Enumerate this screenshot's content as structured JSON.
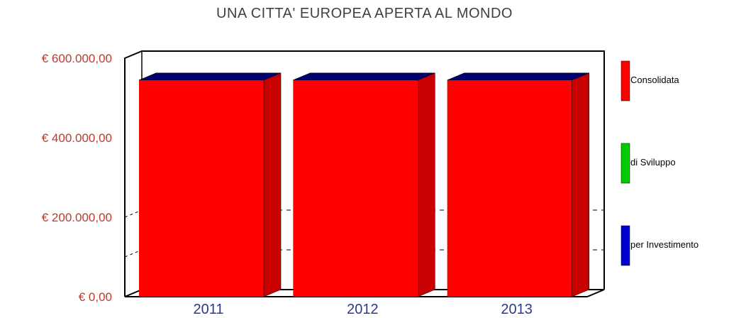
{
  "chart_data": {
    "type": "bar",
    "title": "UNA CITTA' EUROPEA APERTA AL MONDO",
    "categories": [
      "2011",
      "2012",
      "2013"
    ],
    "series": [
      {
        "name": "Consolidata",
        "color": "#ff0000",
        "values": [
          545000,
          545000,
          545000
        ]
      },
      {
        "name": "di Sviluppo",
        "color": "#00cc00",
        "values": [
          0,
          0,
          0
        ]
      },
      {
        "name": "per Investimento",
        "color": "#0000cc",
        "values": [
          0,
          0,
          0
        ]
      }
    ],
    "stacked": true,
    "ylim": [
      0,
      600000
    ],
    "yticks": [
      {
        "value": 0,
        "label": "€ 0,00"
      },
      {
        "value": 200000,
        "label": "€ 200.000,00"
      },
      {
        "value": 400000,
        "label": "€ 400.000,00"
      },
      {
        "value": 600000,
        "label": "€ 600.000,00"
      }
    ],
    "legend_position": "right",
    "grid": true
  }
}
